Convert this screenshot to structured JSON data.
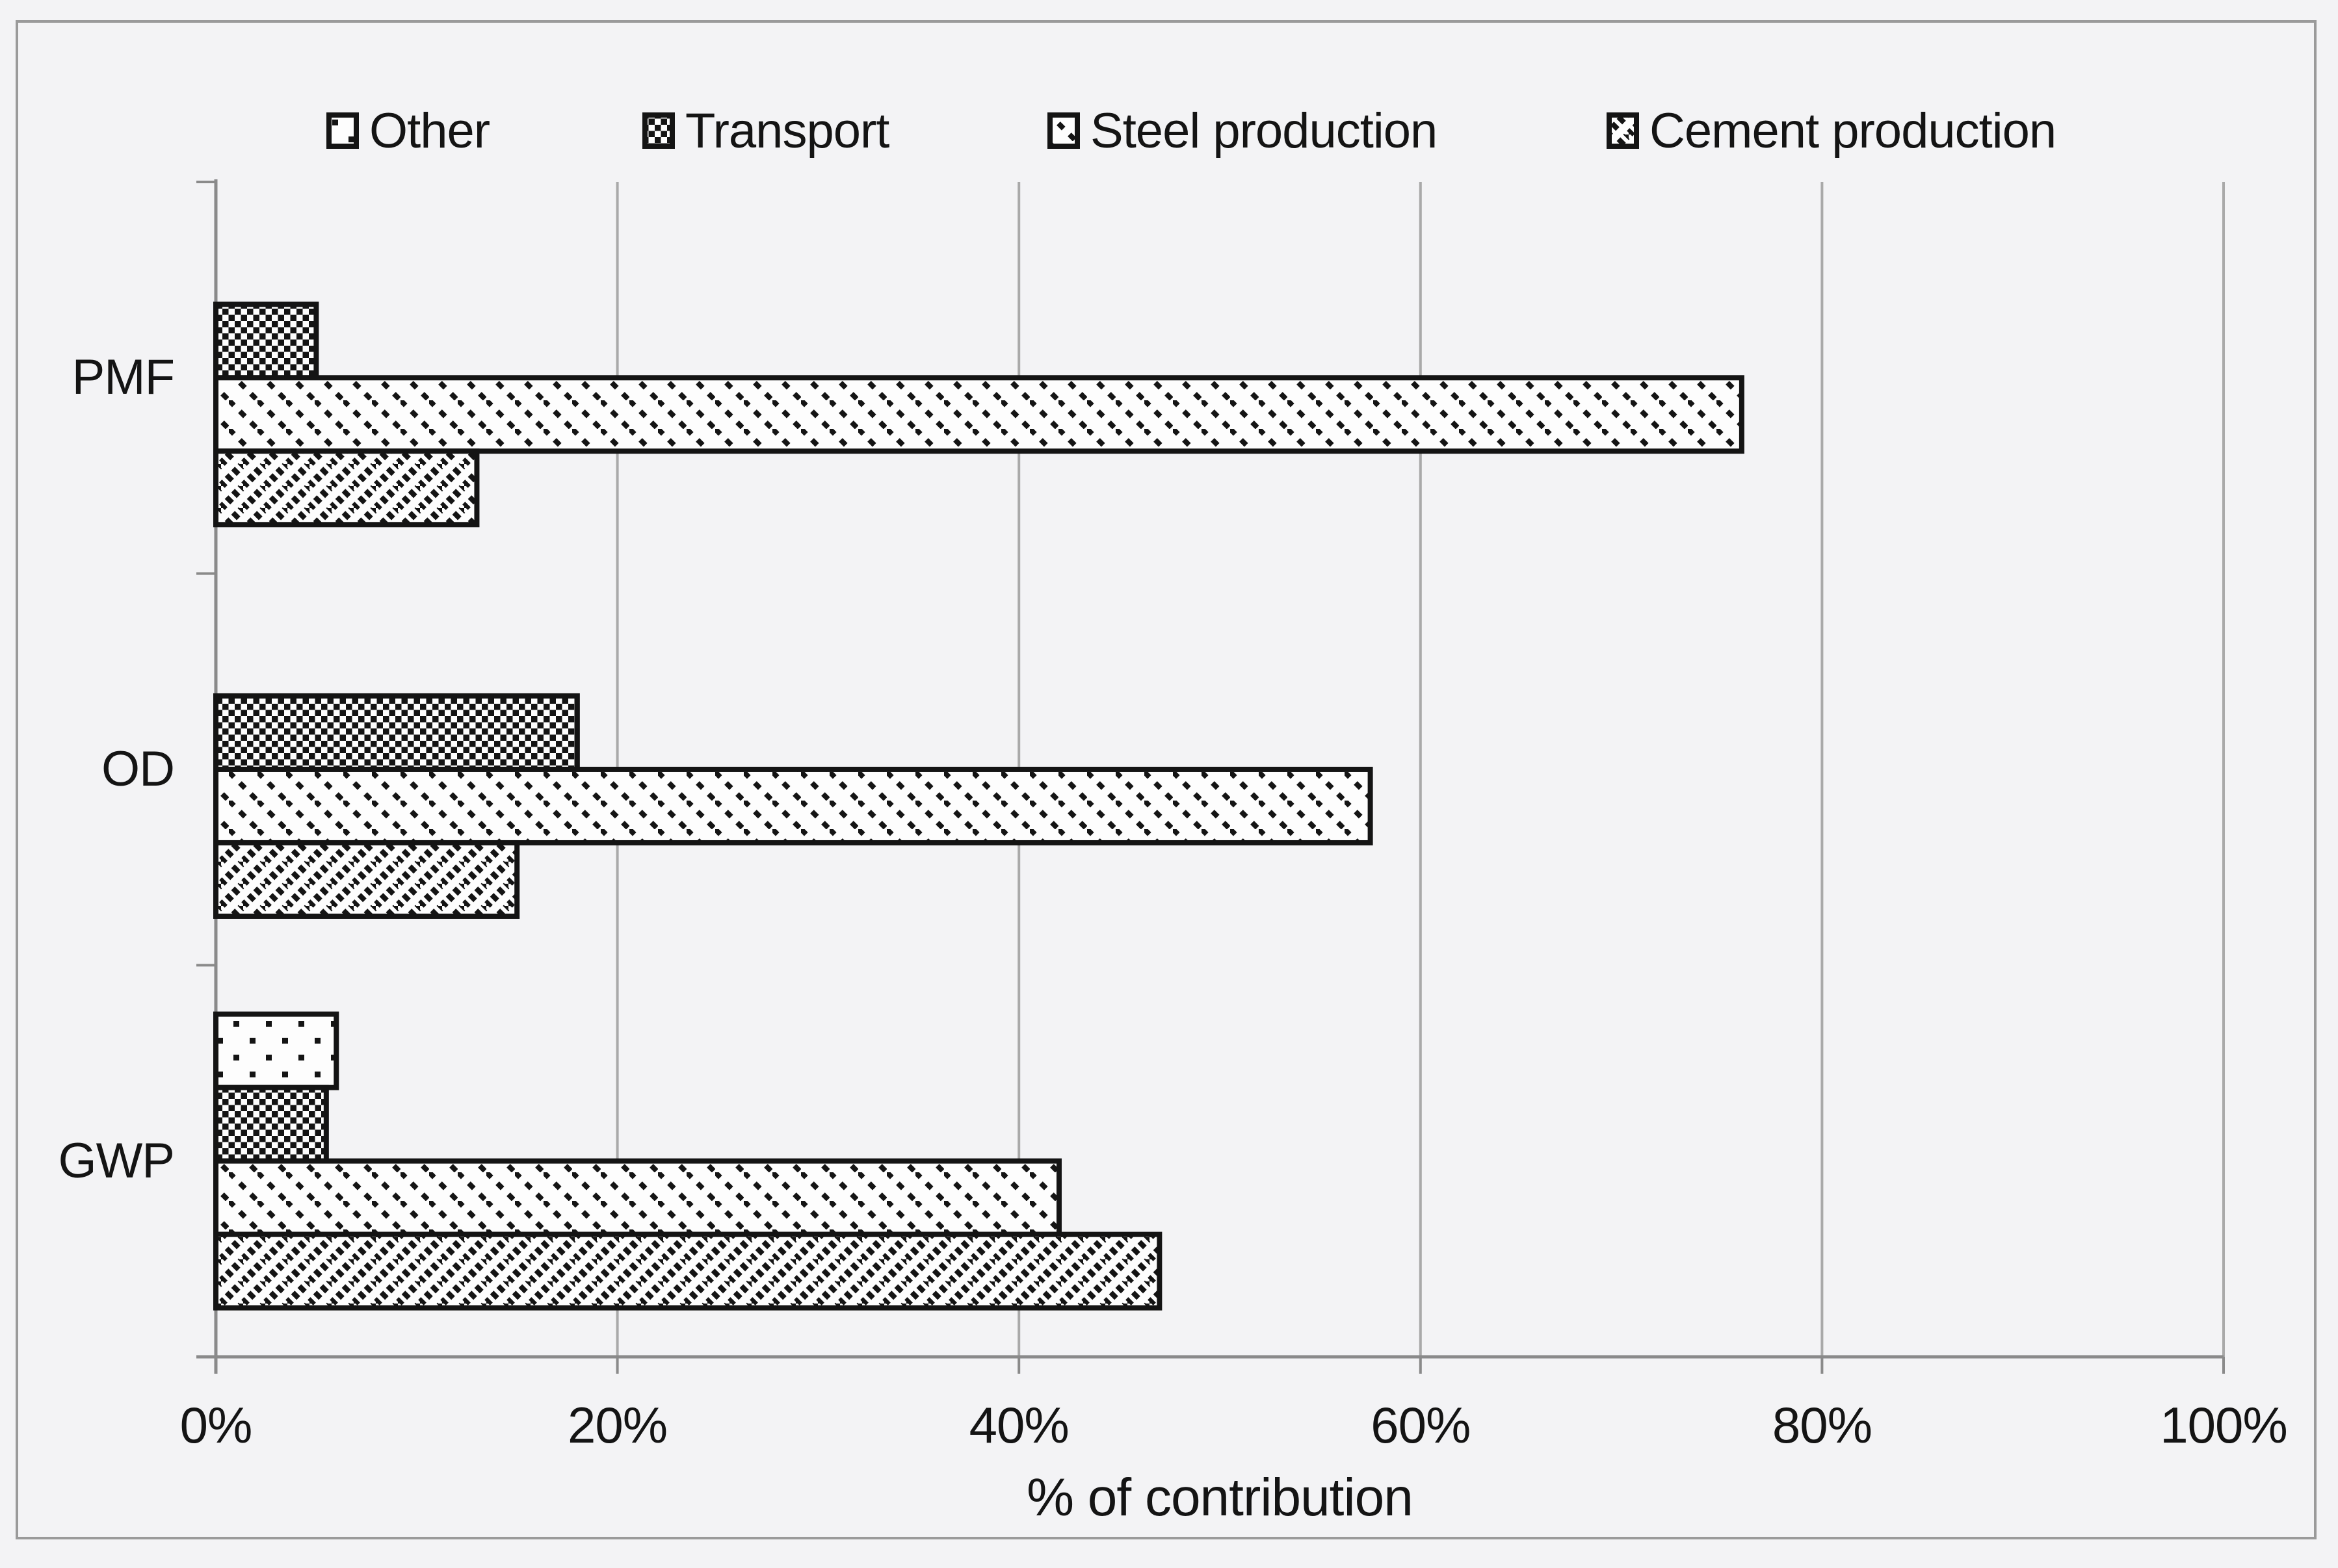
{
  "figure": {
    "background_color": "#f3f3f5",
    "frame_color": "#9a9a9a",
    "text_color": "#141414"
  },
  "chart_data": {
    "type": "bar",
    "orientation": "horizontal",
    "title": "",
    "xlabel": "% of contribution",
    "ylabel": "",
    "xlim": [
      0,
      100
    ],
    "x_ticks": [
      "0%",
      "20%",
      "40%",
      "60%",
      "80%",
      "100%"
    ],
    "x_tick_values": [
      0,
      20,
      40,
      60,
      80,
      100
    ],
    "grid": true,
    "legend_position": "top",
    "categories": [
      "PMF",
      "OD",
      "GWP"
    ],
    "series": [
      {
        "name": "Other",
        "pattern": "sparse-dots",
        "values": [
          0,
          0,
          6
        ]
      },
      {
        "name": "Transport",
        "pattern": "dense-checkerboard",
        "values": [
          5,
          18,
          5.5
        ]
      },
      {
        "name": "Steel production",
        "pattern": "dashed-diagonal-down",
        "values": [
          76,
          57.5,
          42
        ]
      },
      {
        "name": "Cement production",
        "pattern": "dashed-diagonal-up",
        "values": [
          13,
          15,
          47
        ]
      }
    ],
    "bar_fill": "#fdfdfd",
    "bar_stroke": "#141414",
    "gridline_color": "#a9a9a9",
    "axis_color": "#8a8a8a"
  }
}
